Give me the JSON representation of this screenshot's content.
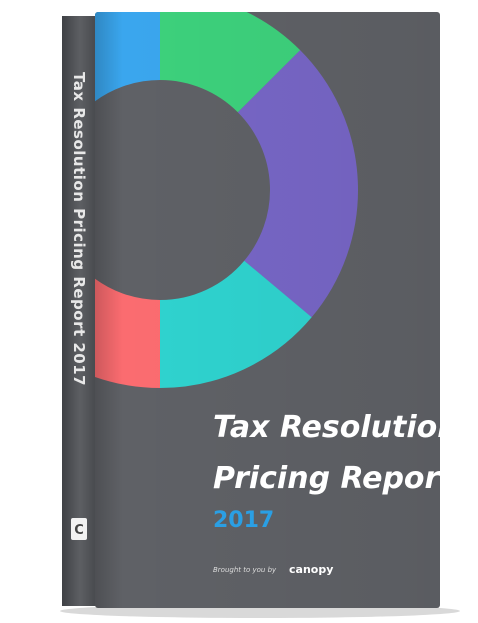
{
  "spine": {
    "title": "Tax Resolution Pricing Report 2017",
    "logo": "C"
  },
  "cover": {
    "title_line1": "Tax Resolution",
    "title_line2": "Pricing Report",
    "year": "2017",
    "credit": "Brought to you by",
    "brand": "canopy"
  }
}
